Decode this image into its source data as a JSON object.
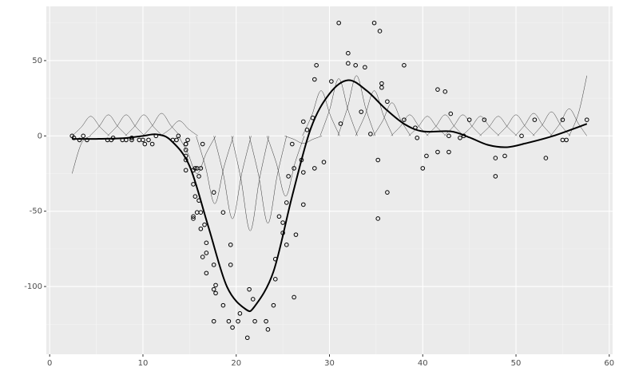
{
  "chart_data": {
    "type": "scatter",
    "x": [
      2.4,
      2.6,
      3.2,
      3.6,
      4.0,
      6.2,
      6.6,
      6.8,
      7.8,
      8.2,
      8.8,
      8.8,
      9.6,
      10.0,
      10.2,
      10.6,
      11.0,
      11.4,
      13.2,
      13.6,
      13.8,
      14.6,
      14.6,
      14.6,
      14.6,
      14.6,
      14.6,
      14.8,
      15.4,
      15.4,
      15.4,
      15.4,
      15.6,
      15.6,
      15.8,
      15.8,
      16.0,
      16.0,
      16.2,
      16.2,
      16.2,
      16.4,
      16.4,
      16.6,
      16.8,
      16.8,
      16.8,
      17.6,
      17.6,
      17.6,
      17.6,
      17.8,
      17.8,
      18.6,
      18.6,
      19.2,
      19.4,
      19.4,
      19.6,
      20.2,
      20.4,
      21.2,
      21.4,
      21.8,
      22.0,
      23.2,
      23.4,
      24.0,
      24.2,
      24.2,
      24.6,
      25.0,
      25.0,
      25.4,
      25.4,
      25.6,
      26.0,
      26.2,
      26.2,
      26.4,
      27.0,
      27.2,
      27.2,
      27.2,
      27.6,
      28.2,
      28.4,
      28.4,
      28.6,
      29.4,
      30.2,
      31.0,
      31.2,
      32.0,
      32.0,
      32.8,
      33.4,
      33.8,
      34.4,
      34.8,
      35.2,
      35.2,
      35.4,
      35.6,
      35.6,
      36.2,
      36.2,
      38.0,
      38.0,
      39.2,
      39.4,
      40.0,
      40.4,
      41.6,
      41.6,
      42.4,
      42.8,
      42.8,
      43.0,
      44.0,
      44.4,
      45.0,
      46.6,
      47.8,
      47.8,
      48.8,
      50.6,
      52.0,
      53.2,
      55.0,
      55.0,
      55.4,
      57.6
    ],
    "values": [
      0.0,
      -1.3,
      -2.7,
      0.0,
      -2.7,
      -2.7,
      -2.7,
      -1.3,
      -2.7,
      -2.7,
      -1.3,
      -2.7,
      -2.7,
      -2.7,
      -5.4,
      -2.7,
      -5.4,
      0.0,
      -2.7,
      -2.7,
      0.0,
      -13.3,
      -5.4,
      -5.4,
      -9.3,
      -16.0,
      -22.8,
      -2.7,
      -22.8,
      -32.1,
      -53.5,
      -54.9,
      -40.2,
      -21.5,
      -21.5,
      -50.8,
      -42.9,
      -26.8,
      -21.5,
      -50.8,
      -61.7,
      -5.4,
      -80.4,
      -59.0,
      -71.0,
      -91.1,
      -77.7,
      -37.5,
      -85.6,
      -123.1,
      -101.9,
      -99.1,
      -104.4,
      -112.5,
      -50.8,
      -123.1,
      -85.6,
      -72.3,
      -127.2,
      -123.1,
      -117.9,
      -134.0,
      -101.9,
      -108.4,
      -123.1,
      -123.1,
      -128.5,
      -112.5,
      -95.1,
      -81.8,
      -53.5,
      -64.4,
      -57.6,
      -72.3,
      -44.3,
      -26.8,
      -5.4,
      -107.1,
      -21.5,
      -65.6,
      -16.0,
      -45.6,
      -24.2,
      9.5,
      4.0,
      12.0,
      -21.5,
      37.5,
      46.9,
      -17.4,
      36.2,
      75.0,
      8.1,
      54.9,
      48.2,
      46.9,
      16.0,
      45.6,
      1.3,
      75.0,
      -16.0,
      -54.9,
      69.6,
      34.8,
      32.1,
      -37.5,
      22.8,
      46.9,
      10.7,
      5.4,
      -1.3,
      -21.5,
      -13.3,
      30.8,
      -10.7,
      29.4,
      0.0,
      -10.7,
      14.7,
      -1.3,
      0.0,
      10.7,
      10.7,
      -26.8,
      -14.7,
      -13.3,
      0.0,
      10.7,
      -14.7,
      -2.7,
      10.7,
      -2.7,
      10.7
    ],
    "fit": {
      "x": [
        2.4,
        5,
        8,
        10,
        11.5,
        13,
        15,
        17,
        19,
        21,
        22,
        24,
        26,
        28,
        30,
        32,
        34,
        36,
        38,
        40,
        43,
        45,
        47,
        49,
        51,
        54,
        57.6
      ],
      "values": [
        -2,
        -2,
        -1.5,
        0,
        1,
        -3,
        -20,
        -60,
        -100,
        -115,
        -113,
        -90,
        -40,
        5,
        28,
        37,
        30,
        18,
        8,
        3,
        3,
        -1,
        -6,
        -7.5,
        -5,
        0,
        8
      ]
    },
    "basis": [
      {
        "x": [
          2.4,
          3.4,
          4.4
        ],
        "values": [
          -25,
          -5,
          0
        ]
      },
      {
        "x": [
          2.4,
          3.4,
          4.4,
          5.4,
          6.4
        ],
        "values": [
          0,
          5.9,
          13,
          5.9,
          0
        ]
      },
      {
        "x": [
          4.3,
          5.3,
          6.3,
          7.3,
          8.3
        ],
        "values": [
          0,
          6.3,
          14,
          6.3,
          0
        ]
      },
      {
        "x": [
          6.2,
          7.2,
          8.2,
          9.2,
          10.2
        ],
        "values": [
          0,
          6.3,
          14,
          6.3,
          0
        ]
      },
      {
        "x": [
          8.1,
          9.1,
          10.1,
          11.1,
          12.1
        ],
        "values": [
          0,
          6.3,
          14,
          6.3,
          0
        ]
      },
      {
        "x": [
          10,
          11,
          12,
          13,
          14
        ],
        "values": [
          0,
          6.8,
          15,
          6.8,
          0
        ]
      },
      {
        "x": [
          11.9,
          12.9,
          13.9,
          14.9,
          15.9
        ],
        "values": [
          0,
          4.5,
          10,
          4.5,
          0
        ]
      },
      {
        "x": [
          13.8,
          14.8,
          15.8,
          16.8,
          17.8
        ],
        "values": [
          0,
          -11.3,
          -25,
          -11.3,
          0
        ]
      },
      {
        "x": [
          15.7,
          16.7,
          17.7,
          18.7,
          19.7
        ],
        "values": [
          0,
          -20.3,
          -45,
          -20.3,
          0
        ]
      },
      {
        "x": [
          17.6,
          18.6,
          19.6,
          20.6,
          21.6
        ],
        "values": [
          0,
          -24.8,
          -55,
          -24.8,
          0
        ]
      },
      {
        "x": [
          19.5,
          20.5,
          21.5,
          22.5,
          23.5
        ],
        "values": [
          0,
          -28.4,
          -63,
          -28.4,
          0
        ]
      },
      {
        "x": [
          21.4,
          22.4,
          23.4,
          24.4,
          25.4
        ],
        "values": [
          0,
          -26.1,
          -58,
          -26.1,
          0
        ]
      },
      {
        "x": [
          23.3,
          24.3,
          25.3,
          26.3,
          27.3
        ],
        "values": [
          0,
          -18,
          -40,
          -18,
          0
        ]
      },
      {
        "x": [
          25.2,
          26.2,
          27.2,
          28.2,
          29.2
        ],
        "values": [
          0,
          -2.3,
          -5,
          -2.3,
          0
        ]
      },
      {
        "x": [
          27.1,
          28.1,
          29.1,
          30.1,
          31.1
        ],
        "values": [
          0,
          13.5,
          30,
          13.5,
          0
        ]
      },
      {
        "x": [
          29,
          30,
          31,
          32,
          33
        ],
        "values": [
          0,
          17.1,
          38,
          17.1,
          0
        ]
      },
      {
        "x": [
          30.9,
          31.9,
          32.9,
          33.9,
          34.9
        ],
        "values": [
          0,
          18,
          40,
          18,
          0
        ]
      },
      {
        "x": [
          32.8,
          33.8,
          34.8,
          35.8,
          36.8
        ],
        "values": [
          0,
          13.5,
          30,
          13.5,
          0
        ]
      },
      {
        "x": [
          34.7,
          35.7,
          36.7,
          37.7,
          38.7
        ],
        "values": [
          0,
          9.9,
          22,
          9.9,
          0
        ]
      },
      {
        "x": [
          36.6,
          37.6,
          38.6,
          39.6,
          40.6
        ],
        "values": [
          0,
          6.3,
          14,
          6.3,
          0
        ]
      },
      {
        "x": [
          38.5,
          39.5,
          40.5,
          41.5,
          42.5
        ],
        "values": [
          0,
          5.9,
          13,
          5.9,
          0
        ]
      },
      {
        "x": [
          40.4,
          41.4,
          42.4,
          43.4,
          44.4
        ],
        "values": [
          0,
          6.3,
          14,
          6.3,
          0
        ]
      },
      {
        "x": [
          42.3,
          43.3,
          44.3,
          45.3,
          46.3
        ],
        "values": [
          0,
          6.3,
          14,
          6.3,
          0
        ]
      },
      {
        "x": [
          44.2,
          45.2,
          46.2,
          47.2,
          48.2
        ],
        "values": [
          0,
          5.9,
          13,
          5.9,
          0
        ]
      },
      {
        "x": [
          46.1,
          47.1,
          48.1,
          49.1,
          50.1
        ],
        "values": [
          0,
          5.9,
          13,
          5.9,
          0
        ]
      },
      {
        "x": [
          48,
          49,
          50,
          51,
          52
        ],
        "values": [
          0,
          6.3,
          14,
          6.3,
          0
        ]
      },
      {
        "x": [
          49.9,
          50.9,
          51.9,
          52.9,
          53.9
        ],
        "values": [
          0,
          6.8,
          15,
          6.8,
          0
        ]
      },
      {
        "x": [
          51.8,
          52.8,
          53.8,
          54.8,
          55.8
        ],
        "values": [
          0,
          7.2,
          16,
          7.2,
          0
        ]
      },
      {
        "x": [
          53.7,
          54.7,
          55.7,
          56.7,
          57.6
        ],
        "values": [
          0,
          8.1,
          18,
          8.1,
          0
        ]
      },
      {
        "x": [
          55.7,
          56.7,
          57.6
        ],
        "values": [
          0,
          15,
          40
        ]
      }
    ],
    "xlim": [
      -0.36,
      60.36
    ],
    "ylim": [
      -145,
      86
    ],
    "xticks": [
      0,
      10,
      20,
      30,
      40,
      50,
      60
    ],
    "yticks": [
      -100,
      -50,
      0,
      50
    ],
    "xminor": [
      5,
      15,
      25,
      35,
      45,
      55
    ],
    "yminor": [
      -125,
      -75,
      -25,
      25,
      75
    ],
    "grid": true
  }
}
